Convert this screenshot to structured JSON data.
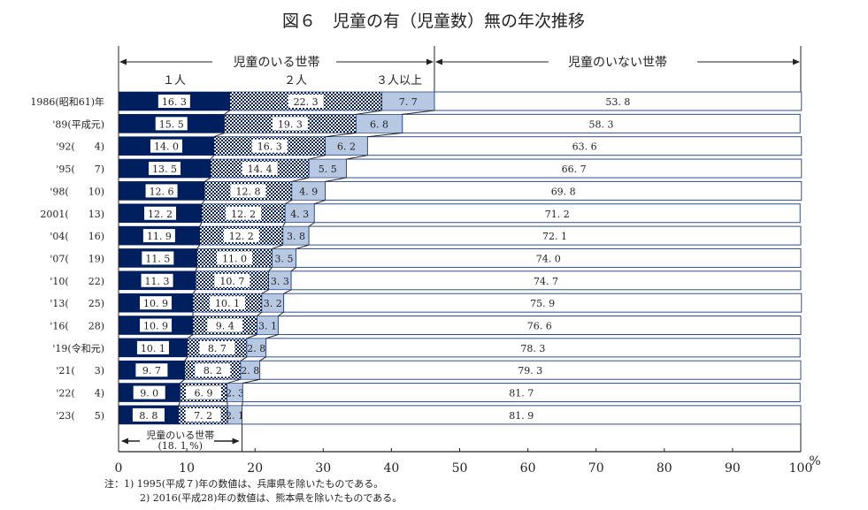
{
  "chart_data": {
    "type": "bar",
    "orientation": "horizontal-stacked-100",
    "title": "図６　児童の有（児童数）無の年次推移",
    "xlabel": "",
    "x_unit": "%",
    "xlim": [
      0,
      100
    ],
    "x_ticks": [
      "0",
      "10",
      "20",
      "30",
      "40",
      "50",
      "60",
      "70",
      "80",
      "90",
      "100"
    ],
    "group_labels": {
      "with_children": "児童のいる世帯",
      "without_children": "児童のいない世帯"
    },
    "series_header_labels": [
      "１人",
      "２人",
      "３人以上"
    ],
    "categories": [
      "1986(昭和61)年",
      "'89(平成元)",
      "'92(　　4)",
      "'95(　　7)",
      "'98(　　10)",
      "2001(　　13)",
      "'04(　　16)",
      "'07(　　19)",
      "'10(　　22)",
      "'13(　　25)",
      "'16(　　28)",
      "'19(令和元)",
      "'21(　　3)",
      "'22(　　4)",
      "'23(　　5)"
    ],
    "series": [
      {
        "name": "1人",
        "color": "#001f5f",
        "pattern": "solid",
        "values": [
          16.3,
          15.5,
          14.0,
          13.5,
          12.6,
          12.2,
          11.9,
          11.5,
          11.3,
          10.9,
          10.9,
          10.1,
          9.7,
          9.0,
          8.8
        ]
      },
      {
        "name": "2人",
        "color": "#001f5f",
        "pattern": "checker",
        "values": [
          22.3,
          19.3,
          16.3,
          14.4,
          12.8,
          12.2,
          12.2,
          11.0,
          10.7,
          10.1,
          9.4,
          8.7,
          8.2,
          6.9,
          7.2
        ]
      },
      {
        "name": "3人以上",
        "color": "#b7c9e2",
        "pattern": "solid",
        "values": [
          7.7,
          6.8,
          6.2,
          5.5,
          4.9,
          4.3,
          3.8,
          3.5,
          3.3,
          3.2,
          3.1,
          2.8,
          2.8,
          2.3,
          2.1
        ]
      },
      {
        "name": "児童のいない世帯",
        "color": "#ffffff",
        "pattern": "solid",
        "values": [
          53.8,
          58.3,
          63.6,
          66.7,
          69.8,
          71.2,
          72.1,
          74.0,
          74.7,
          75.9,
          76.6,
          78.3,
          79.3,
          81.7,
          81.9
        ]
      }
    ],
    "value_labels": [
      [
        "16. 3",
        "22. 3",
        "7. 7",
        "53. 8"
      ],
      [
        "15. 5",
        "19. 3",
        "6. 8",
        "58. 3"
      ],
      [
        "14. 0",
        "16. 3",
        "6. 2",
        "63. 6"
      ],
      [
        "13. 5",
        "14. 4",
        "5. 5",
        "66. 7"
      ],
      [
        "12. 6",
        "12. 8",
        "4. 9",
        "69. 8"
      ],
      [
        "12. 2",
        "12. 2",
        "4. 3",
        "71. 2"
      ],
      [
        "11. 9",
        "12. 2",
        "3. 8",
        "72. 1"
      ],
      [
        "11. 5",
        "11. 0",
        "3. 5",
        "74. 0"
      ],
      [
        "11. 3",
        "10. 7",
        "3. 3",
        "74. 7"
      ],
      [
        "10. 9",
        "10. 1",
        "3. 2",
        "75. 9"
      ],
      [
        "10. 9",
        "9. 4",
        "3. 1",
        "76. 6"
      ],
      [
        "10. 1",
        "8. 7",
        "2. 8",
        "78. 3"
      ],
      [
        "9. 7",
        "8. 2",
        "2. 8",
        "79. 3"
      ],
      [
        "9. 0",
        "6. 9",
        "2. 3",
        "81. 7"
      ],
      [
        "8. 8",
        "7. 2",
        "2. 1",
        "81. 9"
      ]
    ],
    "annotation": {
      "label": "児童のいる世帯",
      "value_text": "(18. 1 %)",
      "value": 18.1
    },
    "notes": [
      "注：1)  1995(平成７)年の数値は、兵庫県を除いたものである。",
      "2)  2016(平成28)年の数値は、熊本県を除いたものである。"
    ],
    "grid": false,
    "legend": "top-header"
  }
}
